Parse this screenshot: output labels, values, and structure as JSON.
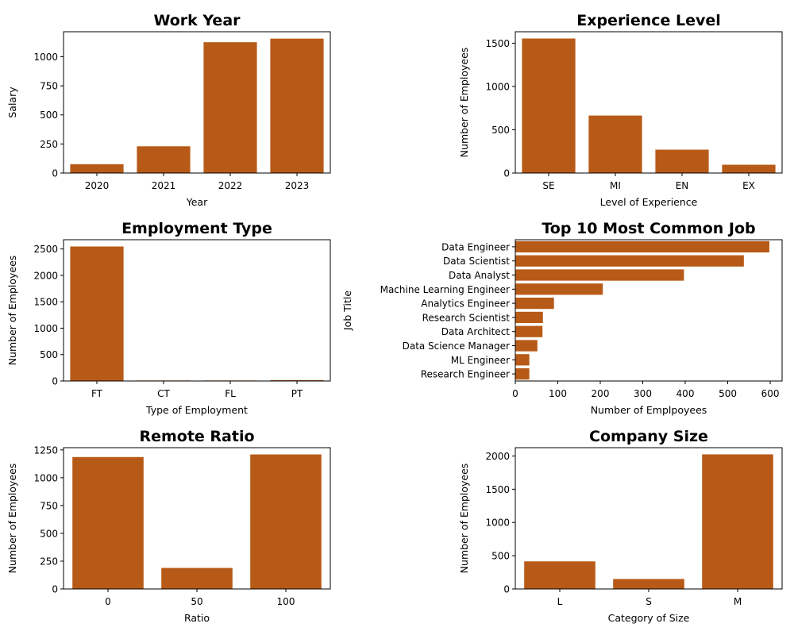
{
  "colors": {
    "bar": "#b85a17"
  },
  "chart_data": [
    {
      "type": "bar",
      "orientation": "vertical",
      "title": "Work Year",
      "xlabel": "Year",
      "ylabel": "Salary",
      "categories": [
        "2020",
        "2021",
        "2022",
        "2023"
      ],
      "values": [
        76,
        230,
        1125,
        1156
      ],
      "ylim": [
        0,
        1215
      ],
      "yticks": [
        0,
        250,
        500,
        750,
        1000
      ]
    },
    {
      "type": "bar",
      "orientation": "vertical",
      "title": "Experience Level",
      "xlabel": "Level of Experience",
      "ylabel": "Number of Employees",
      "categories": [
        "SE",
        "MI",
        "EN",
        "EX"
      ],
      "values": [
        1554,
        664,
        270,
        96
      ],
      "ylim": [
        0,
        1632
      ],
      "yticks": [
        0,
        500,
        1000,
        1500
      ]
    },
    {
      "type": "bar",
      "orientation": "vertical",
      "title": "Employment Type",
      "xlabel": "Type of Employment",
      "ylabel": "Number of Employees",
      "categories": [
        "FT",
        "CT",
        "FL",
        "PT"
      ],
      "values": [
        2547,
        10,
        10,
        17
      ],
      "ylim": [
        0,
        2675
      ],
      "yticks": [
        0,
        500,
        1000,
        1500,
        2000,
        2500
      ]
    },
    {
      "type": "bar",
      "orientation": "horizontal",
      "title": "Top 10 Most Common Job",
      "xlabel": "Number of Emplpoyees",
      "ylabel": "Job Title",
      "categories": [
        "Data Engineer",
        "Data Scientist",
        "Data Analyst",
        "Machine Learning Engineer",
        "Analytics Engineer",
        "Research Scientist",
        "Data Architect",
        "Data Science Manager",
        "ML Engineer",
        "Research Engineer"
      ],
      "values": [
        598,
        538,
        397,
        206,
        91,
        65,
        64,
        52,
        33,
        33
      ],
      "xlim": [
        0,
        628
      ],
      "xticks": [
        0,
        100,
        200,
        300,
        400,
        500,
        600
      ]
    },
    {
      "type": "bar",
      "orientation": "vertical",
      "title": "Remote Ratio",
      "xlabel": "Ratio",
      "ylabel": "Number of Employees",
      "categories": [
        "0",
        "50",
        "100"
      ],
      "values": [
        1186,
        189,
        1209
      ],
      "ylim": [
        0,
        1270
      ],
      "yticks": [
        0,
        250,
        500,
        750,
        1000,
        1250
      ]
    },
    {
      "type": "bar",
      "orientation": "vertical",
      "title": "Company Size",
      "xlabel": "Category of Size",
      "ylabel": "Number of Employees",
      "categories": [
        "L",
        "S",
        "M"
      ],
      "values": [
        415,
        150,
        2024
      ],
      "ylim": [
        0,
        2125
      ],
      "yticks": [
        0,
        500,
        1000,
        1500,
        2000
      ]
    }
  ]
}
